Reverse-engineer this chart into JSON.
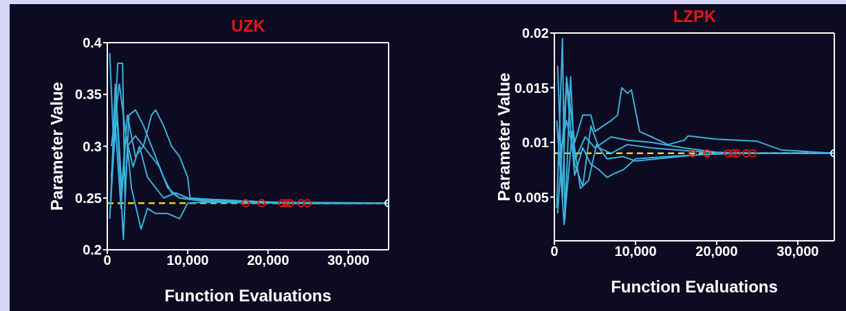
{
  "chart_data": [
    {
      "type": "line",
      "title": "UZK",
      "xlabel": "Function Evaluations",
      "ylabel": "Parameter Value",
      "xlim": [
        0,
        35000
      ],
      "xticks": [
        0,
        {
          "value": 10000,
          "label": "10,000"
        },
        {
          "value": 20000,
          "label": "20,000"
        },
        {
          "value": 30000,
          "label": "30,000"
        }
      ],
      "ylim": [
        0.2,
        0.4
      ],
      "yticks": [
        0.2,
        0.25,
        0.3,
        0.35,
        0.4
      ],
      "marker": "none",
      "line_style": "solid",
      "ref_lines": [
        {
          "axis": "y",
          "value": 0.245,
          "color": "#e8d820",
          "line_style": "dashed"
        }
      ],
      "series": [
        {
          "color": "#3cb2dc",
          "x": [
            500,
            1500,
            2500,
            3500,
            4500,
            5500,
            6000,
            7000,
            8000,
            9000,
            10000,
            10300,
            12000,
            15000,
            17000,
            20000,
            25000,
            35000
          ],
          "values": [
            0.3,
            0.36,
            0.3,
            0.31,
            0.3,
            0.33,
            0.335,
            0.32,
            0.3,
            0.29,
            0.27,
            0.25,
            0.249,
            0.248,
            0.247,
            0.246,
            0.245,
            0.245
          ]
        },
        {
          "color": "#3cb2dc",
          "x": [
            300,
            800,
            1300,
            1900,
            2200,
            2700,
            3500,
            4500,
            6000,
            7000,
            8000,
            9000,
            11000,
            15000,
            19000,
            35000
          ],
          "values": [
            0.39,
            0.3,
            0.38,
            0.38,
            0.25,
            0.33,
            0.335,
            0.32,
            0.29,
            0.27,
            0.255,
            0.25,
            0.248,
            0.247,
            0.246,
            0.245
          ]
        },
        {
          "color": "#3cb2dc",
          "x": [
            500,
            1200,
            2000,
            2500,
            3000,
            4200,
            5000,
            6000,
            7500,
            9000,
            10000,
            12000,
            22000,
            35000
          ],
          "values": [
            0.27,
            0.33,
            0.21,
            0.3,
            0.26,
            0.22,
            0.24,
            0.235,
            0.235,
            0.23,
            0.245,
            0.246,
            0.245,
            0.245
          ]
        },
        {
          "color": "#3cb2dc",
          "x": [
            400,
            1000,
            1800,
            2500,
            3500,
            4500,
            5500,
            6500,
            7500,
            9000,
            12000,
            22500,
            35000
          ],
          "values": [
            0.24,
            0.36,
            0.26,
            0.33,
            0.29,
            0.3,
            0.29,
            0.28,
            0.26,
            0.25,
            0.247,
            0.245,
            0.245
          ]
        },
        {
          "color": "#3cb2dc",
          "x": [
            300,
            1000,
            1700,
            2300,
            3200,
            4000,
            5000,
            6000,
            7000,
            8500,
            10000,
            14000,
            24000,
            35000
          ],
          "values": [
            0.23,
            0.32,
            0.24,
            0.31,
            0.28,
            0.3,
            0.27,
            0.26,
            0.25,
            0.255,
            0.25,
            0.248,
            0.245,
            0.245
          ]
        },
        {
          "type": "scatter",
          "marker": "circle",
          "color": "#e01414",
          "x": [
            17200,
            19200,
            21800,
            22250,
            22700,
            24100,
            24900
          ],
          "values": [
            0.245,
            0.245,
            0.245,
            0.245,
            0.245,
            0.245,
            0.245
          ]
        },
        {
          "type": "scatter",
          "marker": "circle",
          "color": "#ffffff",
          "x": [
            35000
          ],
          "values": [
            0.245
          ]
        }
      ]
    },
    {
      "type": "line",
      "title": "LZPK",
      "xlabel": "Function Evaluations",
      "ylabel": "Parameter Value",
      "xlim": [
        0,
        34500
      ],
      "xticks": [
        0,
        {
          "value": 10000,
          "label": "10,000"
        },
        {
          "value": 20000,
          "label": "20,000"
        },
        {
          "value": 30000,
          "label": "30,000"
        }
      ],
      "ylim": [
        0.001,
        0.02
      ],
      "yticks": [
        0.005,
        0.01,
        0.015,
        0.02
      ],
      "marker": "none",
      "line_style": "solid",
      "ref_lines": [
        {
          "axis": "y",
          "value": 0.009,
          "color": "#e8d820",
          "line_style": "dashed"
        }
      ],
      "series": [
        {
          "color": "#3cb2dc",
          "x": [
            400,
            1000,
            1500,
            2500,
            3500,
            4500,
            5000,
            6000,
            7000,
            7800,
            8300,
            9000,
            9500,
            10500,
            12000,
            14000,
            16000,
            16500,
            20000,
            25000,
            28000,
            34500
          ],
          "values": [
            0.017,
            0.005,
            0.016,
            0.01,
            0.0125,
            0.0125,
            0.011,
            0.0115,
            0.012,
            0.0125,
            0.015,
            0.0145,
            0.0148,
            0.011,
            0.0105,
            0.0098,
            0.0102,
            0.0106,
            0.0103,
            0.0101,
            0.0093,
            0.009
          ]
        },
        {
          "color": "#3cb2dc",
          "x": [
            300,
            1000,
            1300,
            2000,
            2500,
            3500,
            4500,
            5500,
            7000,
            9000,
            12000,
            17000,
            22000,
            34500
          ],
          "values": [
            0.004,
            0.0195,
            0.003,
            0.016,
            0.008,
            0.006,
            0.0115,
            0.0095,
            0.009,
            0.0098,
            0.0095,
            0.0092,
            0.009,
            0.009
          ]
        },
        {
          "color": "#3cb2dc",
          "x": [
            400,
            1500,
            2500,
            3500,
            4500,
            5500,
            6500,
            7500,
            8500,
            10000,
            14000,
            19000,
            21500,
            34500
          ],
          "values": [
            0.0035,
            0.0155,
            0.007,
            0.0095,
            0.008,
            0.0075,
            0.0068,
            0.0072,
            0.0075,
            0.0085,
            0.0087,
            0.0089,
            0.009,
            0.009
          ]
        },
        {
          "color": "#3cb2dc",
          "x": [
            300,
            1200,
            2200,
            3200,
            4200,
            5200,
            6500,
            8500,
            10000,
            14000,
            18000,
            23000,
            34500
          ],
          "values": [
            0.012,
            0.0025,
            0.011,
            0.0058,
            0.0065,
            0.0098,
            0.0085,
            0.0087,
            0.0083,
            0.0086,
            0.0089,
            0.009,
            0.009
          ]
        },
        {
          "color": "#3cb2dc",
          "x": [
            500,
            1500,
            2600,
            3800,
            5000,
            7000,
            9000,
            12000,
            16000,
            20000,
            24500,
            34500
          ],
          "values": [
            0.008,
            0.012,
            0.0085,
            0.0105,
            0.0095,
            0.0105,
            0.0102,
            0.01,
            0.0095,
            0.0091,
            0.009,
            0.009
          ]
        },
        {
          "type": "scatter",
          "marker": "circle",
          "color": "#e01414",
          "x": [
            17000,
            18850,
            21400,
            22000,
            22450,
            23650,
            24450
          ],
          "values": [
            0.009,
            0.009,
            0.009,
            0.009,
            0.009,
            0.009,
            0.009
          ]
        },
        {
          "type": "scatter",
          "marker": "circle",
          "color": "#ffffff",
          "x": [
            34500
          ],
          "values": [
            0.009
          ]
        }
      ]
    }
  ]
}
